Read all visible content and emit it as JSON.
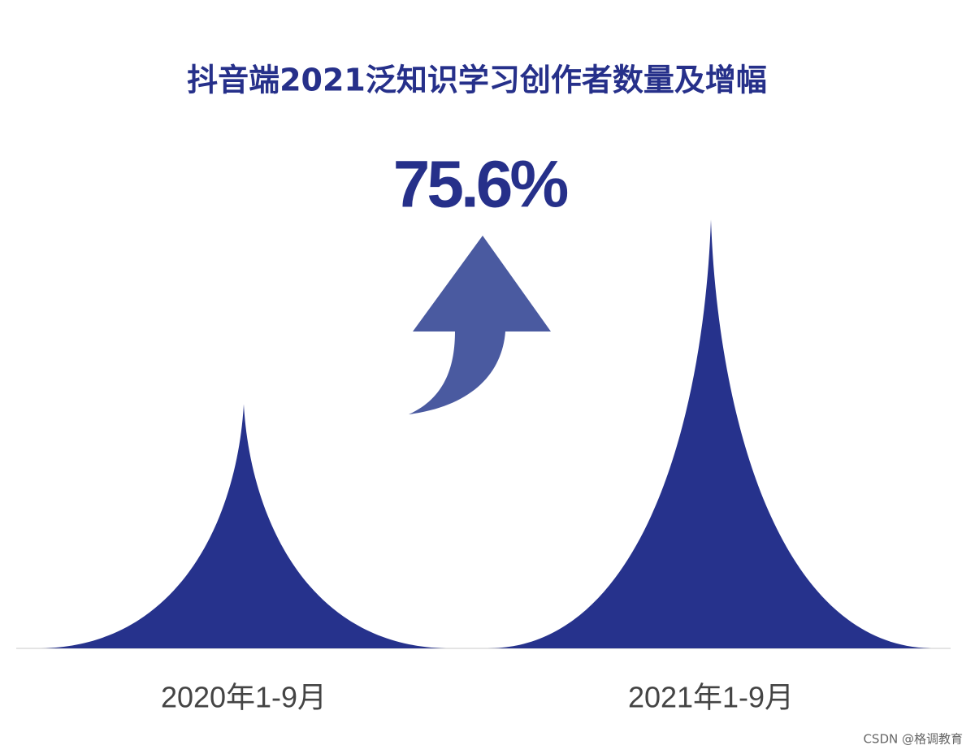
{
  "chart_data": {
    "type": "bar",
    "title": "抖音端2021泛知识学习创作者数量及增幅",
    "annotation": "75.6%",
    "categories": [
      "2020年1-9月",
      "2021年1-9月"
    ],
    "values": [
      100,
      175.6
    ],
    "color": "#26328c",
    "ylim": [
      0,
      190
    ],
    "watermark": "CSDN @格调教育"
  }
}
